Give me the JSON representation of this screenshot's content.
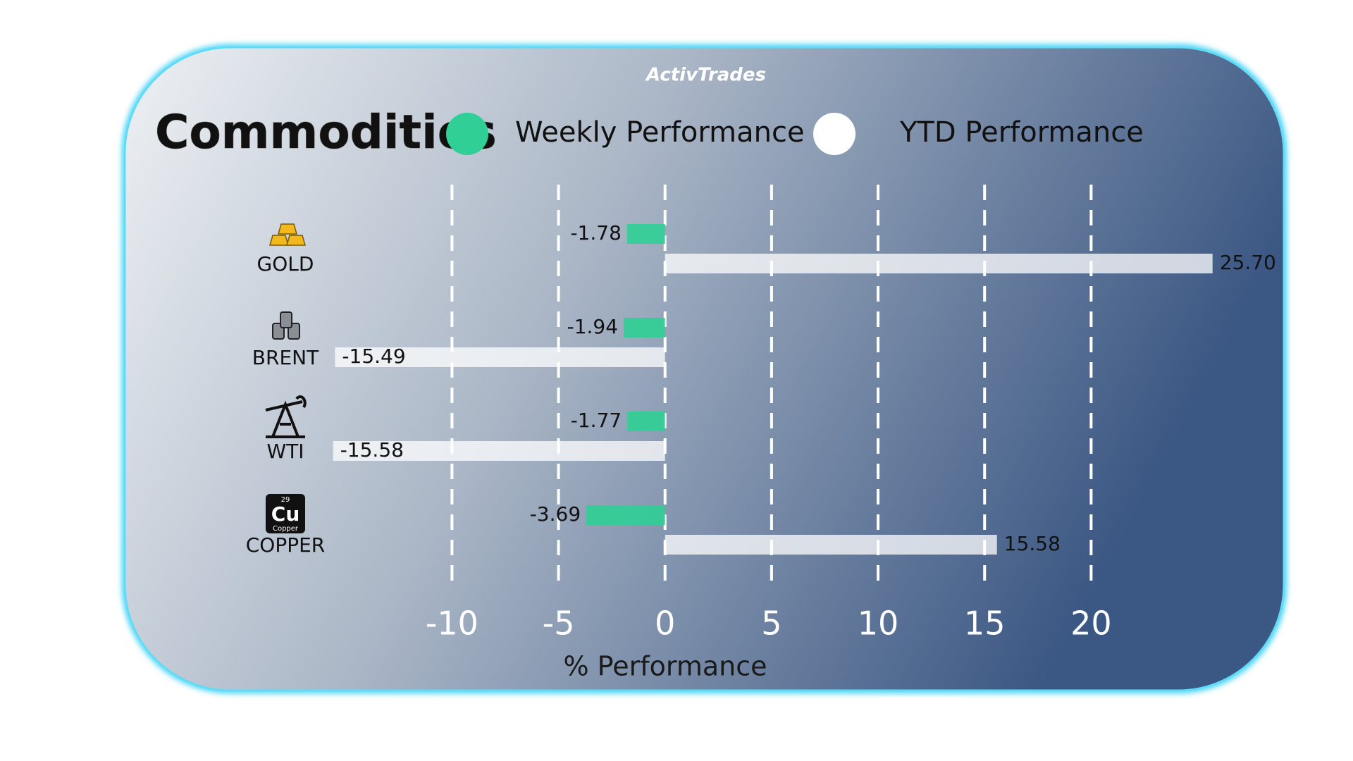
{
  "brand": "ActivTrades",
  "copper_icon": {
    "number": "29",
    "symbol": "Cu",
    "name": "Copper"
  },
  "chart_data": {
    "type": "bar",
    "title": "Commodities",
    "x_label": "% Performance",
    "categories": [
      "GOLD",
      "BRENT",
      "WTI",
      "COPPER"
    ],
    "series": [
      {
        "name": "Weekly Performance",
        "color": "#2fcf95",
        "values": [
          -1.78,
          -1.94,
          -1.77,
          -3.69
        ]
      },
      {
        "name": "YTD Performance",
        "color": "#ffffff",
        "values": [
          25.7,
          -15.49,
          -15.58,
          15.58
        ],
        "value_labels": [
          "25.70",
          "-15.49",
          "-15.58",
          "15.58"
        ]
      }
    ],
    "xlim": [
      -16,
      27
    ],
    "xticks": [
      -10,
      -5,
      0,
      5,
      10,
      15,
      20
    ],
    "grid": true
  }
}
